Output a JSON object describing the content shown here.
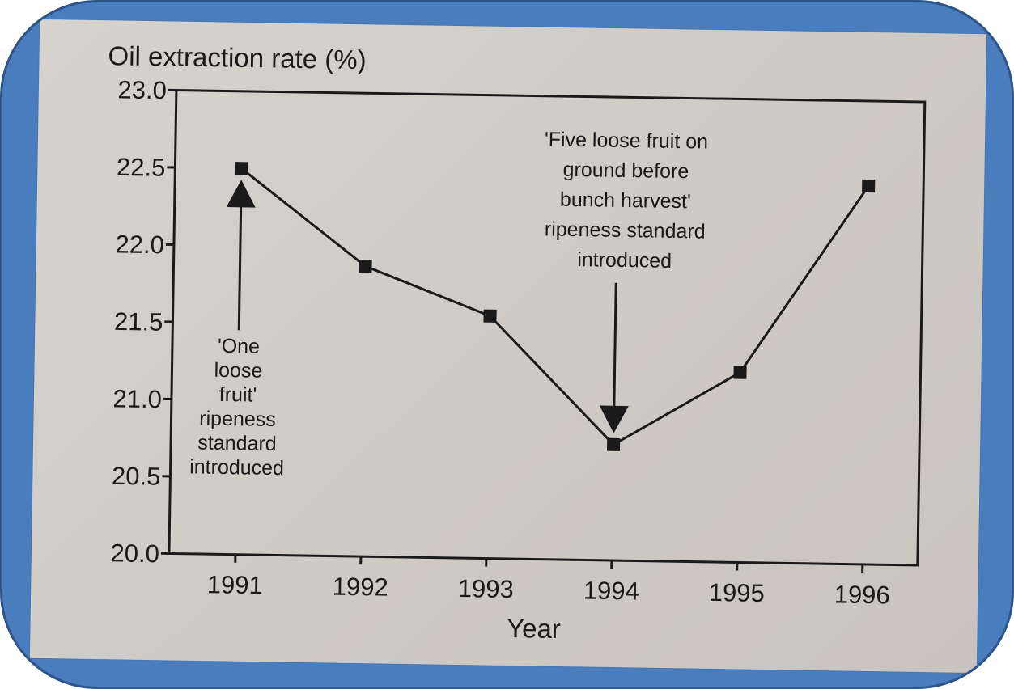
{
  "chart_data": {
    "type": "line",
    "title": "",
    "ylabel": "Oil extraction rate (%)",
    "xlabel": "Year",
    "categories": [
      "1991",
      "1992",
      "1993",
      "1994",
      "1995",
      "1996"
    ],
    "series": [
      {
        "values": [
          22.5,
          21.88,
          21.57,
          20.75,
          21.23,
          22.45
        ]
      }
    ],
    "ylim": [
      20.0,
      23.0
    ],
    "yticks": [
      20.0,
      20.5,
      21.0,
      21.5,
      22.0,
      22.5,
      23.0
    ],
    "ytick_labels": [
      "20.0",
      "20.5",
      "21.0",
      "21.5",
      "22.0",
      "22.5",
      "23.0"
    ],
    "grid": false,
    "marker": "square",
    "line_color": "#1a1a1a",
    "annotations": [
      {
        "lines": [
          "'One",
          "loose",
          "fruit'",
          "ripeness",
          "standard",
          "introduced"
        ],
        "target": "1991",
        "arrow": "up"
      },
      {
        "lines": [
          "'Five loose fruit on",
          "ground before",
          "bunch harvest'",
          "ripeness standard",
          "introduced"
        ],
        "target": "1994",
        "arrow": "down"
      }
    ]
  },
  "frame_color": "#4a7dbd",
  "paper_color": "#d3cfca"
}
